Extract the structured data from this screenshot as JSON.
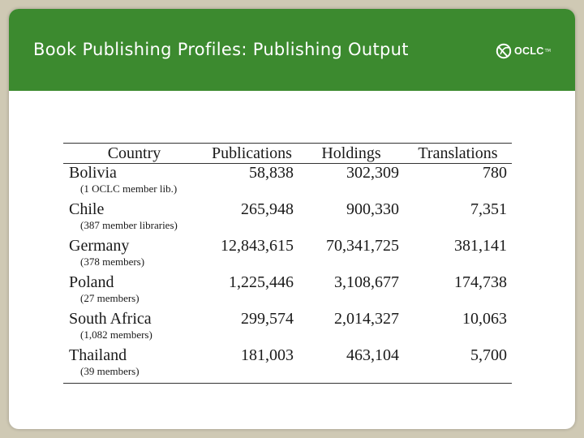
{
  "header": {
    "title": "Book Publishing Profiles: Publishing Output",
    "logo_text": "OCLC",
    "logo_tm": "TM"
  },
  "table": {
    "columns": [
      "Country",
      "Publications",
      "Holdings",
      "Translations"
    ],
    "rows": [
      {
        "country": "Bolivia",
        "note": "(1 OCLC member lib.)",
        "publications": "58,838",
        "holdings": "302,309",
        "translations": "780"
      },
      {
        "country": "Chile",
        "note": "(387 member libraries)",
        "publications": "265,948",
        "holdings": "900,330",
        "translations": "7,351"
      },
      {
        "country": "Germany",
        "note": "(378 members)",
        "publications": "12,843,615",
        "holdings": "70,341,725",
        "translations": "381,141"
      },
      {
        "country": "Poland",
        "note": "(27 members)",
        "publications": "1,225,446",
        "holdings": "3,108,677",
        "translations": "174,738"
      },
      {
        "country": "South Africa",
        "note": "(1,082 members)",
        "publications": "299,574",
        "holdings": "2,014,327",
        "translations": "10,063"
      },
      {
        "country": "Thailand",
        "note": "(39 members)",
        "publications": "181,003",
        "holdings": "463,104",
        "translations": "5,700"
      }
    ]
  },
  "colors": {
    "header_green": "#3c8a2f",
    "frame": "#cfc9b4"
  }
}
